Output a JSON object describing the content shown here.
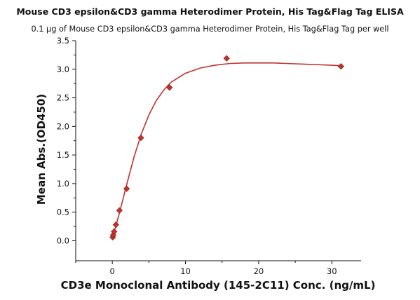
{
  "chart_data": {
    "type": "scatter",
    "title": "Mouse CD3 epsilon&CD3 gamma Heterodimer Protein, His Tag&Flag Tag ELISA",
    "subtitle": "0.1 μg of Mouse CD3 epsilon&CD3 gamma Heterodimer Protein, His Tag&Flag Tag per well",
    "xlabel": "CD3e Monoclonal Antibody (145-2C11) Conc. (ng/mL)",
    "ylabel": "Mean Abs.(OD450)",
    "xlim": [
      -5,
      34
    ],
    "ylim": [
      -0.35,
      3.5
    ],
    "x_ticks": [
      0,
      10,
      20,
      30
    ],
    "x_tick_labels": [
      "0",
      "10",
      "20",
      "30"
    ],
    "y_ticks": [
      0.0,
      0.5,
      1.0,
      1.5,
      2.0,
      2.5,
      3.0,
      3.5
    ],
    "y_tick_labels": [
      "0.0",
      "0.5",
      "1.0",
      "1.5",
      "2.0",
      "2.5",
      "3.0",
      "3.5"
    ],
    "grid": false,
    "legend": "none",
    "series": [
      {
        "x": [
          0.061,
          0.122,
          0.244,
          0.488,
          0.977,
          1.953,
          3.906,
          7.813,
          15.625,
          31.25
        ],
        "y": [
          0.06,
          0.1,
          0.16,
          0.28,
          0.53,
          0.91,
          1.8,
          2.68,
          3.19,
          3.05
        ],
        "color": "#c0322c"
      }
    ],
    "fit_curve": {
      "x": [
        0.0,
        0.5,
        1.0,
        1.5,
        2.0,
        3.0,
        4.0,
        5.0,
        6.0,
        7.0,
        8.0,
        10.0,
        12.0,
        14.0,
        16.0,
        18.0,
        20.0,
        22.0,
        24.0,
        26.0,
        28.0,
        30.0,
        31.25
      ],
      "y": [
        0.05,
        0.26,
        0.5,
        0.75,
        1.0,
        1.48,
        1.88,
        2.2,
        2.45,
        2.63,
        2.77,
        2.93,
        3.02,
        3.07,
        3.1,
        3.11,
        3.11,
        3.11,
        3.1,
        3.09,
        3.08,
        3.07,
        3.06
      ],
      "color": "#c0322c"
    }
  }
}
